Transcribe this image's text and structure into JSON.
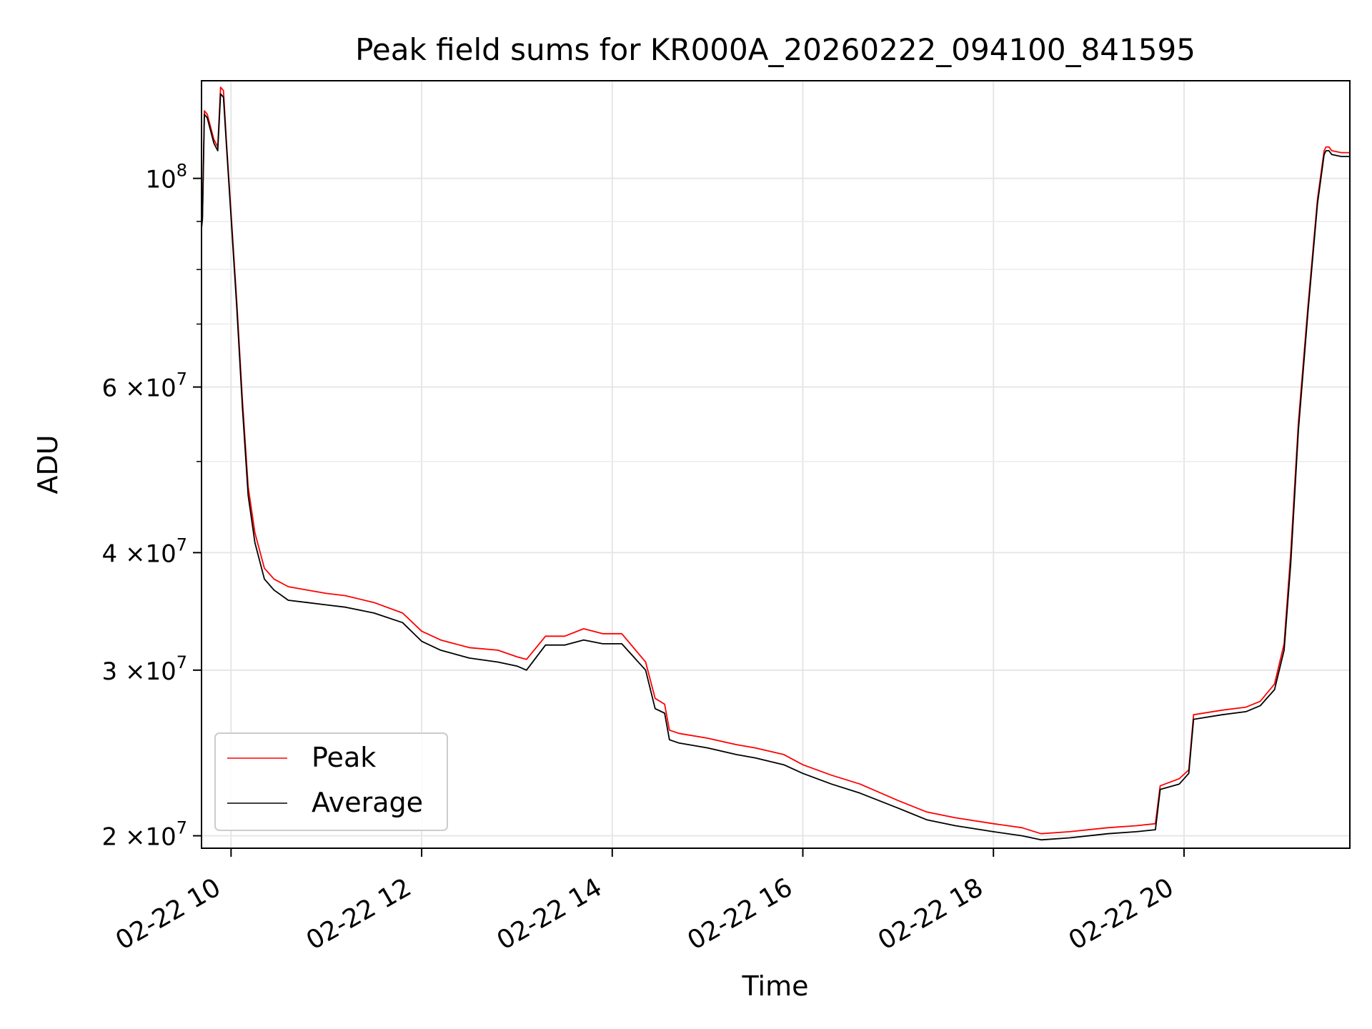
{
  "chart_data": {
    "type": "line",
    "title": "Peak field sums for KR000A_20260222_094100_841595",
    "xlabel": "Time",
    "ylabel": "ADU",
    "yscale": "log",
    "ylim": [
      19400000,
      127000000
    ],
    "xlim_hours": [
      9.69,
      21.74
    ],
    "grid": true,
    "legend_position": "lower left",
    "x_ticks": [
      {
        "value": 10,
        "label": "02-22 10"
      },
      {
        "value": 12,
        "label": "02-22 12"
      },
      {
        "value": 14,
        "label": "02-22 14"
      },
      {
        "value": 16,
        "label": "02-22 16"
      },
      {
        "value": 18,
        "label": "02-22 18"
      },
      {
        "value": 20,
        "label": "02-22 20"
      }
    ],
    "y_ticks": [
      {
        "value": 20000000,
        "mant": "2",
        "times": "×10",
        "exp": "7"
      },
      {
        "value": 30000000,
        "mant": "3",
        "times": "×10",
        "exp": "7"
      },
      {
        "value": 40000000,
        "mant": "4",
        "times": "×10",
        "exp": "7"
      },
      {
        "value": 60000000,
        "mant": "6",
        "times": "×10",
        "exp": "7"
      },
      {
        "value": 100000000,
        "mant": "",
        "times": "10",
        "exp": "8"
      }
    ],
    "y_minor_ticks": [
      50000000,
      70000000,
      80000000,
      90000000
    ],
    "series": [
      {
        "name": "Peak",
        "color": "#ff0000",
        "x": [
          9.69,
          9.7,
          9.72,
          9.75,
          9.82,
          9.86,
          9.89,
          9.92,
          9.95,
          10.0,
          10.06,
          10.12,
          10.18,
          10.25,
          10.35,
          10.45,
          10.6,
          10.8,
          11.0,
          11.2,
          11.5,
          11.8,
          12.0,
          12.2,
          12.5,
          12.8,
          13.0,
          13.1,
          13.3,
          13.5,
          13.7,
          13.9,
          14.1,
          14.35,
          14.45,
          14.55,
          14.6,
          14.7,
          15.0,
          15.3,
          15.5,
          15.8,
          16.0,
          16.3,
          16.6,
          17.0,
          17.3,
          17.6,
          18.0,
          18.3,
          18.5,
          18.8,
          19.2,
          19.5,
          19.7,
          19.75,
          19.95,
          20.05,
          20.1,
          20.4,
          20.65,
          20.8,
          20.95,
          21.05,
          21.12,
          21.2,
          21.3,
          21.4,
          21.47,
          21.49,
          21.52,
          21.55,
          21.65,
          21.74
        ],
        "y": [
          89000000,
          91000000,
          118000000,
          117000000,
          110000000,
          108000000,
          125000000,
          124000000,
          110000000,
          92000000,
          74000000,
          58000000,
          47000000,
          42000000,
          38500000,
          37500000,
          36800000,
          36500000,
          36200000,
          36000000,
          35400000,
          34500000,
          33000000,
          32300000,
          31700000,
          31500000,
          31000000,
          30800000,
          32600000,
          32600000,
          33200000,
          32800000,
          32800000,
          30600000,
          28000000,
          27600000,
          25900000,
          25700000,
          25400000,
          25000000,
          24800000,
          24400000,
          23800000,
          23200000,
          22700000,
          21800000,
          21200000,
          20900000,
          20600000,
          20400000,
          20100000,
          20200000,
          20400000,
          20500000,
          20600000,
          22600000,
          23000000,
          23500000,
          26900000,
          27200000,
          27400000,
          27800000,
          29000000,
          32000000,
          40000000,
          55000000,
          73000000,
          95000000,
          107000000,
          108000000,
          108000000,
          107000000,
          106500000,
          106500000
        ]
      },
      {
        "name": "Average",
        "color": "#000000",
        "x": [
          9.69,
          9.7,
          9.72,
          9.75,
          9.82,
          9.86,
          9.89,
          9.92,
          9.95,
          10.0,
          10.06,
          10.12,
          10.18,
          10.25,
          10.35,
          10.45,
          10.6,
          10.8,
          11.0,
          11.2,
          11.5,
          11.8,
          12.0,
          12.2,
          12.5,
          12.8,
          13.0,
          13.1,
          13.3,
          13.5,
          13.7,
          13.9,
          14.1,
          14.35,
          14.45,
          14.55,
          14.6,
          14.7,
          15.0,
          15.3,
          15.5,
          15.8,
          16.0,
          16.3,
          16.6,
          17.0,
          17.3,
          17.6,
          18.0,
          18.3,
          18.5,
          18.8,
          19.2,
          19.5,
          19.7,
          19.75,
          19.95,
          20.05,
          20.1,
          20.4,
          20.65,
          20.8,
          20.95,
          21.05,
          21.12,
          21.2,
          21.3,
          21.4,
          21.47,
          21.49,
          21.52,
          21.55,
          21.65,
          21.74
        ],
        "y": [
          88500000,
          90500000,
          117000000,
          116000000,
          109000000,
          107000000,
          123000000,
          122000000,
          109000000,
          91000000,
          73000000,
          57000000,
          46000000,
          41000000,
          37500000,
          36500000,
          35600000,
          35400000,
          35200000,
          35000000,
          34500000,
          33700000,
          32200000,
          31500000,
          30900000,
          30600000,
          30300000,
          30000000,
          31900000,
          31900000,
          32300000,
          32000000,
          32000000,
          30000000,
          27300000,
          27000000,
          25300000,
          25100000,
          24800000,
          24400000,
          24200000,
          23800000,
          23300000,
          22700000,
          22200000,
          21400000,
          20800000,
          20500000,
          20200000,
          20000000,
          19800000,
          19900000,
          20100000,
          20200000,
          20300000,
          22400000,
          22700000,
          23300000,
          26600000,
          26900000,
          27100000,
          27500000,
          28600000,
          31500000,
          39000000,
          54000000,
          72000000,
          94000000,
          106000000,
          107000000,
          107000000,
          106000000,
          105500000,
          105500000
        ]
      }
    ]
  }
}
